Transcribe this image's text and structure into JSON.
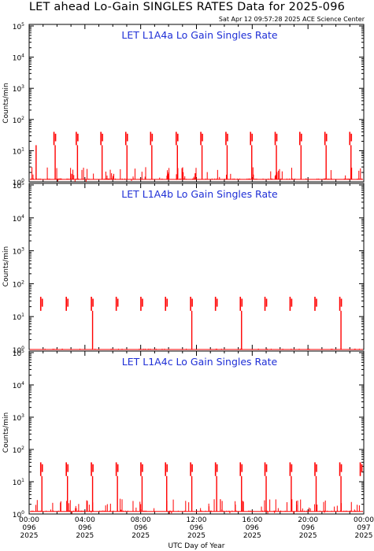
{
  "header": {
    "title": "LET ahead Lo-Gain SINGLES RATES Data for 2025-096",
    "timestamp": "Sat Apr 12 09:57:28 2025 ACE Science Center"
  },
  "colors": {
    "data": "#ff0000",
    "title": "#1f2fd6",
    "axes": "#000000"
  },
  "chart_data": [
    {
      "type": "line",
      "title": "LET L1A4a Lo Gain Singles Rate",
      "ylabel": "Counts/min",
      "yscale": "log",
      "ylim": [
        1,
        100000
      ],
      "xlim": [
        "2025-096 00:00",
        "2025-097 00:00"
      ],
      "burst_times": [
        "01:52",
        "03:28",
        "05:14",
        "07:01",
        "08:48",
        "10:38",
        "12:24",
        "14:12",
        "15:58",
        "17:44",
        "19:30",
        "21:18",
        "23:05"
      ],
      "burst_peak": 40,
      "burst_low": 15,
      "baseline": 1.2,
      "spike_times": [
        "00:30",
        "01:52",
        "03:28",
        "05:14",
        "07:01",
        "08:48",
        "10:38",
        "12:24",
        "14:12",
        "15:58",
        "17:44",
        "19:30",
        "21:18",
        "23:05"
      ],
      "background_level": 2
    },
    {
      "type": "line",
      "title": "LET L1A4b Lo Gain Singles Rate",
      "ylabel": "Counts/min",
      "yscale": "log",
      "ylim": [
        1,
        100000
      ],
      "xlim": [
        "2025-096 00:00",
        "2025-097 00:00"
      ],
      "burst_times": [
        "00:55",
        "02:45",
        "04:33",
        "06:20",
        "08:06",
        "09:52",
        "11:40",
        "13:27",
        "15:14",
        "17:00",
        "18:48",
        "20:35",
        "22:22"
      ],
      "burst_peak": 40,
      "burst_low": 15,
      "baseline": 1.0,
      "spike_times": [
        "04:33",
        "11:40",
        "15:14",
        "22:22"
      ],
      "background_level": 1
    },
    {
      "type": "line",
      "title": "LET L1A4c Lo Gain Singles Rate",
      "ylabel": "Counts/min",
      "yscale": "log",
      "ylim": [
        1,
        100000
      ],
      "xlim": [
        "2025-096 00:00",
        "2025-097 00:00"
      ],
      "burst_times": [
        "00:55",
        "02:45",
        "04:33",
        "06:20",
        "08:06",
        "09:52",
        "11:40",
        "13:27",
        "15:14",
        "17:00",
        "18:48",
        "20:35",
        "22:22",
        "23:50"
      ],
      "burst_peak": 40,
      "burst_low": 15,
      "baseline": 1.2,
      "spike_times": [
        "00:55",
        "02:45",
        "04:33",
        "06:20",
        "08:06",
        "09:52",
        "11:40",
        "13:27",
        "15:14",
        "17:00",
        "18:48",
        "20:35",
        "22:22"
      ],
      "background_level": 2
    }
  ],
  "axes": {
    "y_ticks": [
      {
        "base": "10",
        "exp": "0"
      },
      {
        "base": "10",
        "exp": "1"
      },
      {
        "base": "10",
        "exp": "2"
      },
      {
        "base": "10",
        "exp": "3"
      },
      {
        "base": "10",
        "exp": "4"
      },
      {
        "base": "10",
        "exp": "5"
      }
    ],
    "x_ticks": [
      {
        "time": "00:00",
        "day": "096",
        "year": "2025"
      },
      {
        "time": "04:00",
        "day": "096",
        "year": "2025"
      },
      {
        "time": "08:00",
        "day": "096",
        "year": "2025"
      },
      {
        "time": "12:00",
        "day": "096",
        "year": "2025"
      },
      {
        "time": "16:00",
        "day": "096",
        "year": "2025"
      },
      {
        "time": "20:00",
        "day": "096",
        "year": "2025"
      },
      {
        "time": "00:00",
        "day": "097",
        "year": "2025"
      }
    ],
    "xlabel": "UTC Day of Year"
  }
}
